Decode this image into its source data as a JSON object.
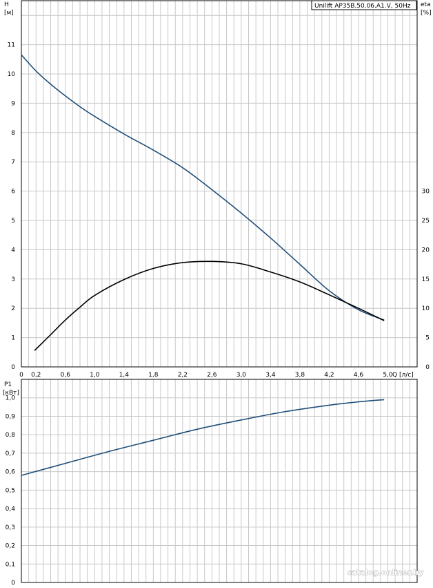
{
  "model_label": "Unilift AP35B.50.06.A1.V, 50Hz",
  "watermark": "catalog.onliner.by",
  "chart_data": [
    {
      "type": "line",
      "title": "",
      "ylabel": "H",
      "yunit": "[м]",
      "y2label": "eta",
      "y2unit": "[%]",
      "xlabel": "Q",
      "xunit": "[л/с]",
      "xlim": [
        0,
        5.4
      ],
      "ylim": [
        0,
        12.5
      ],
      "y2lim": [
        0,
        62.5
      ],
      "x_ticks": [
        "0",
        "0,2",
        "0,6",
        "1,0",
        "1,4",
        "1,8",
        "2,2",
        "2,6",
        "3,0",
        "3,4",
        "3,8",
        "4,2",
        "4,6",
        "5,0"
      ],
      "y_ticks": [
        "0",
        "1",
        "2",
        "3",
        "4",
        "5",
        "6",
        "7",
        "8",
        "9",
        "10",
        "11"
      ],
      "y2_ticks": [
        "0",
        "5",
        "10",
        "15",
        "20",
        "25",
        "30"
      ],
      "grid": true,
      "series": [
        {
          "name": "H",
          "axis": "left",
          "color": "#1f4e79",
          "x": [
            0,
            0.2,
            0.4,
            0.6,
            0.8,
            1.0,
            1.4,
            1.8,
            2.2,
            2.6,
            3.0,
            3.4,
            3.8,
            4.2,
            4.6,
            4.95
          ],
          "y": [
            10.65,
            10.1,
            9.65,
            9.25,
            8.88,
            8.55,
            7.95,
            7.4,
            6.8,
            6.05,
            5.25,
            4.4,
            3.5,
            2.6,
            1.95,
            1.6
          ]
        },
        {
          "name": "eta",
          "axis": "right",
          "color": "#000000",
          "x": [
            0.18,
            0.4,
            0.6,
            0.8,
            1.0,
            1.4,
            1.8,
            2.2,
            2.6,
            3.0,
            3.4,
            3.8,
            4.2,
            4.6,
            4.95
          ],
          "y": [
            2.8,
            5.5,
            8.0,
            10.2,
            12.2,
            14.9,
            16.8,
            17.8,
            18.0,
            17.6,
            16.2,
            14.5,
            12.3,
            10.0,
            7.9
          ]
        }
      ]
    },
    {
      "type": "line",
      "title": "",
      "ylabel": "P1",
      "yunit": "[кВт]",
      "xlim": [
        0,
        5.4
      ],
      "ylim": [
        0,
        1.1
      ],
      "y_ticks": [
        "0",
        "0,1",
        "0,2",
        "0,3",
        "0,4",
        "0,5",
        "0,6",
        "0,7",
        "0,8",
        "0,9",
        "1,0"
      ],
      "grid": true,
      "series": [
        {
          "name": "P1",
          "color": "#1f4e79",
          "x": [
            0,
            0.6,
            1.2,
            1.8,
            2.4,
            3.0,
            3.6,
            4.2,
            4.6,
            4.95
          ],
          "y": [
            0.58,
            0.645,
            0.71,
            0.77,
            0.83,
            0.88,
            0.925,
            0.96,
            0.978,
            0.99
          ]
        }
      ]
    }
  ]
}
